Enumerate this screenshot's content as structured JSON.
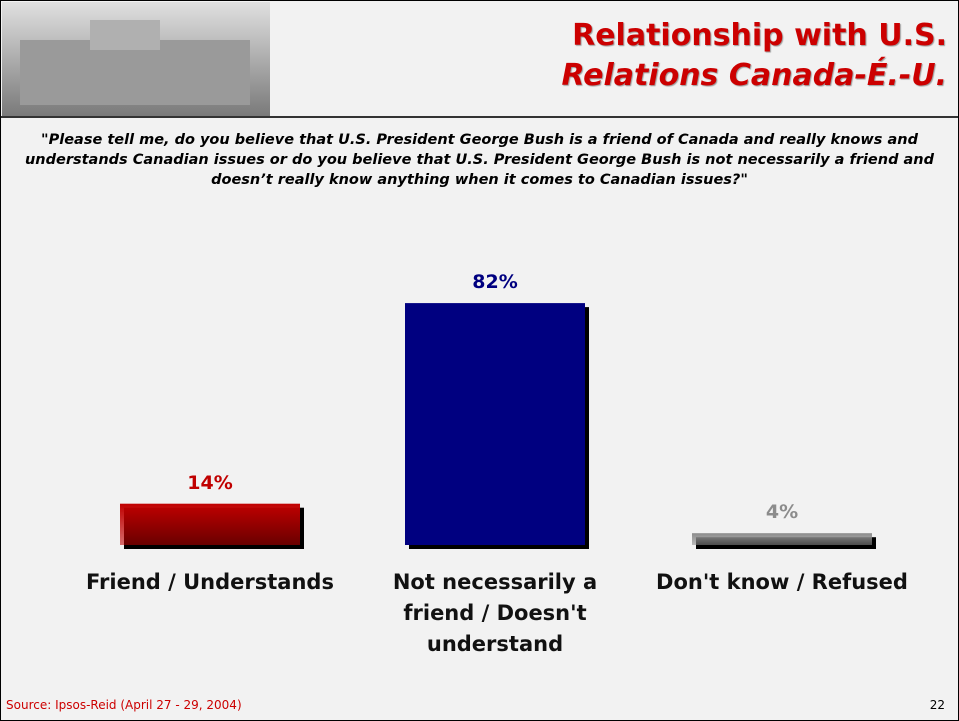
{
  "header": {
    "title": "Relationship with U.S.",
    "subtitle": "Relations Canada-É.-U."
  },
  "question": "\"Please tell me, do you believe that U.S. President George Bush is a friend of Canada and really knows and understands Canadian issues or do you believe that U.S. President George Bush is not necessarily a friend and doesn’t really know anything when it comes to Canadian issues?\"",
  "chart_data": {
    "type": "bar",
    "categories": [
      "Friend / Understands",
      "Not necessarily a friend / Doesn't understand",
      "Don't know / Refused"
    ],
    "values": [
      14,
      82,
      4
    ],
    "value_labels": [
      "14%",
      "82%",
      "4%"
    ],
    "colors": [
      "#c00000",
      "#000080",
      "#8c8c8c"
    ]
  },
  "footer": {
    "source": "Source: Ipsos-Reid (April 27 - 29, 2004)",
    "page": "22"
  }
}
